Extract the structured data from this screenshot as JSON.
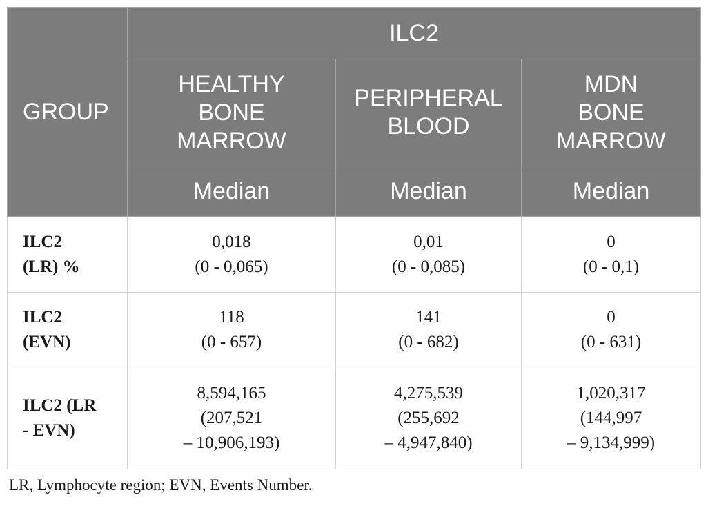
{
  "table": {
    "group_header": "GROUP",
    "super_header": "ILC2",
    "columns": [
      {
        "lines": [
          "HEALTHY",
          "BONE",
          "MARROW"
        ],
        "stat": "Median"
      },
      {
        "lines": [
          "PERIPHERAL",
          "BLOOD"
        ],
        "stat": "Median"
      },
      {
        "lines": [
          "MDN",
          "BONE",
          "MARROW"
        ],
        "stat": "Median"
      }
    ],
    "rows": [
      {
        "label": [
          "ILC2",
          "(LR) %"
        ],
        "cells": [
          [
            "0,018",
            "(0 - 0,065)"
          ],
          [
            "0,01",
            "(0 - 0,085)"
          ],
          [
            "0",
            "(0 - 0,1)"
          ]
        ]
      },
      {
        "label": [
          "ILC2",
          "(EVN)"
        ],
        "cells": [
          [
            "118",
            "(0 - 657)"
          ],
          [
            "141",
            "(0 - 682)"
          ],
          [
            "0",
            "(0 - 631)"
          ]
        ]
      },
      {
        "label": [
          "ILC2 (LR",
          "- EVN)"
        ],
        "cells": [
          [
            "8,594,165",
            "(207,521",
            "– 10,906,193)"
          ],
          [
            "4,275,539",
            "(255,692",
            "– 4,947,840)"
          ],
          [
            "1,020,317",
            "(144,997",
            "– 9,134,999)"
          ]
        ]
      }
    ]
  },
  "footnote": "LR, Lymphocyte region; EVN, Events Number."
}
